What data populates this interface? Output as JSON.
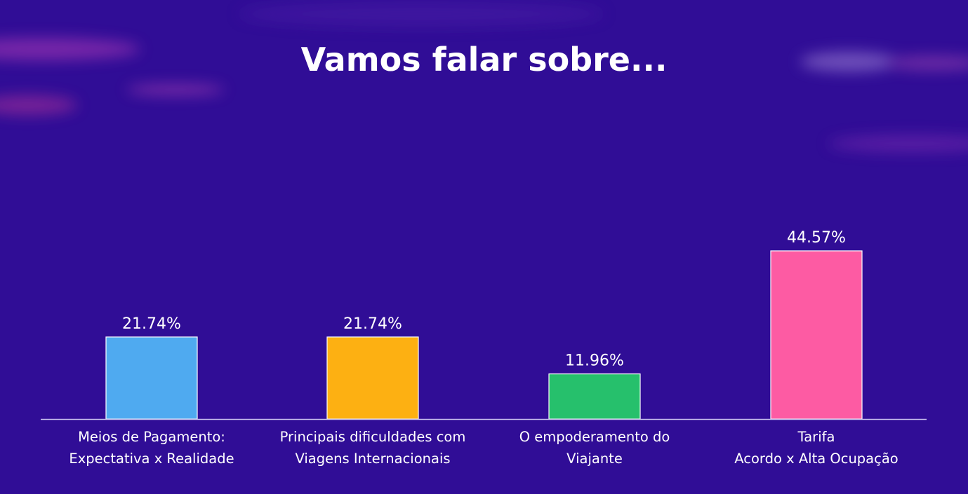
{
  "title": "Vamos falar sobre...",
  "colors": {
    "background": "#300d96",
    "axis": "#c9c2ee",
    "bar_outline": "#ffffff",
    "text": "#ffffff"
  },
  "chart_data": {
    "type": "bar",
    "title": "",
    "xlabel": "",
    "ylabel": "",
    "ylim": [
      0,
      44.57
    ],
    "grid": false,
    "legend": "none",
    "categories": [
      [
        "Meios de Pagamento:",
        "Expectativa x Realidade"
      ],
      [
        "Principais dificuldades com",
        "Viagens Internacionais"
      ],
      [
        "O empoderamento do",
        "Viajante"
      ],
      [
        "Tarifa",
        "Acordo x Alta Ocupação"
      ]
    ],
    "values": [
      21.74,
      21.74,
      11.96,
      44.57
    ],
    "value_labels": [
      "21.74%",
      "21.74%",
      "11.96%",
      "44.57%"
    ],
    "bar_colors": [
      "#4faaf0",
      "#fdb012",
      "#26c06c",
      "#fd5ba3"
    ]
  }
}
